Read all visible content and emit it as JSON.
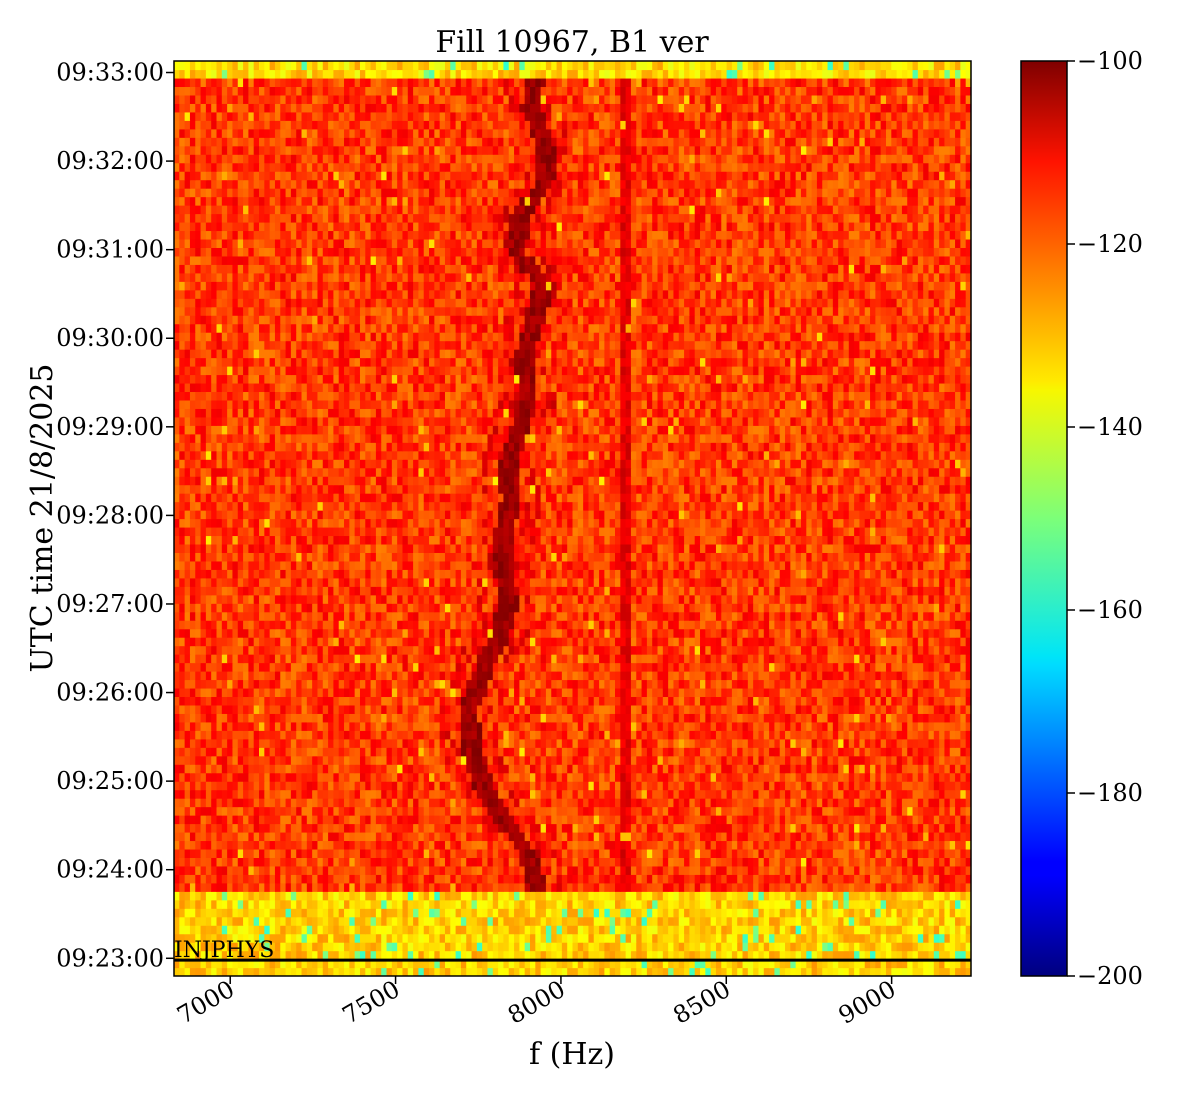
{
  "chart_data": {
    "type": "heatmap",
    "title": "Fill 10967, B1 ver",
    "xlabel": "f (Hz)",
    "ylabel": "UTC time 21/8/2025",
    "xlim": [
      6830,
      9240
    ],
    "ylim_minutes": [
      22.8,
      33.13
    ],
    "x_ticks": [
      {
        "value": 7000,
        "label": "7000"
      },
      {
        "value": 7500,
        "label": "7500"
      },
      {
        "value": 8000,
        "label": "8000"
      },
      {
        "value": 8500,
        "label": "8500"
      },
      {
        "value": 9000,
        "label": "9000"
      }
    ],
    "y_ticks": [
      {
        "value": 23,
        "label": "09:23:00"
      },
      {
        "value": 24,
        "label": "09:24:00"
      },
      {
        "value": 25,
        "label": "09:25:00"
      },
      {
        "value": 26,
        "label": "09:26:00"
      },
      {
        "value": 27,
        "label": "09:27:00"
      },
      {
        "value": 28,
        "label": "09:28:00"
      },
      {
        "value": 29,
        "label": "09:29:00"
      },
      {
        "value": 30,
        "label": "09:30:00"
      },
      {
        "value": 31,
        "label": "09:31:00"
      },
      {
        "value": 32,
        "label": "09:32:00"
      },
      {
        "value": 33,
        "label": "09:33:00"
      }
    ],
    "colorbar": {
      "colormap": "jet",
      "range": [
        -200,
        -100
      ],
      "ticks": [
        {
          "value": -100,
          "label": "−100"
        },
        {
          "value": -120,
          "label": "−120"
        },
        {
          "value": -140,
          "label": "−140"
        },
        {
          "value": -160,
          "label": "−160"
        },
        {
          "value": -180,
          "label": "−180"
        },
        {
          "value": -200,
          "label": "−200"
        }
      ]
    },
    "annotation": {
      "label": "INJPHYS",
      "time_minutes": 22.98
    },
    "segments": [
      {
        "start_minutes": 22.8,
        "end_minutes": 23.75,
        "level_db": -133
      },
      {
        "start_minutes": 23.75,
        "end_minutes": 32.92,
        "level_db": -118
      },
      {
        "start_minutes": 32.92,
        "end_minutes": 33.13,
        "level_db": -134
      }
    ],
    "tune_line": {
      "level_db": -103,
      "points": [
        {
          "time_minutes": 23.8,
          "f_hz": 7930
        },
        {
          "time_minutes": 24.2,
          "f_hz": 7900
        },
        {
          "time_minutes": 24.6,
          "f_hz": 7820
        },
        {
          "time_minutes": 25.0,
          "f_hz": 7760
        },
        {
          "time_minutes": 25.4,
          "f_hz": 7730
        },
        {
          "time_minutes": 25.8,
          "f_hz": 7720
        },
        {
          "time_minutes": 26.2,
          "f_hz": 7760
        },
        {
          "time_minutes": 26.6,
          "f_hz": 7810
        },
        {
          "time_minutes": 27.0,
          "f_hz": 7840
        },
        {
          "time_minutes": 27.4,
          "f_hz": 7830
        },
        {
          "time_minutes": 27.8,
          "f_hz": 7830
        },
        {
          "time_minutes": 28.2,
          "f_hz": 7850
        },
        {
          "time_minutes": 28.6,
          "f_hz": 7840
        },
        {
          "time_minutes": 29.0,
          "f_hz": 7880
        },
        {
          "time_minutes": 29.4,
          "f_hz": 7900
        },
        {
          "time_minutes": 29.8,
          "f_hz": 7890
        },
        {
          "time_minutes": 30.2,
          "f_hz": 7920
        },
        {
          "time_minutes": 30.6,
          "f_hz": 7950
        },
        {
          "time_minutes": 31.0,
          "f_hz": 7860
        },
        {
          "time_minutes": 31.4,
          "f_hz": 7880
        },
        {
          "time_minutes": 31.8,
          "f_hz": 7960
        },
        {
          "time_minutes": 32.2,
          "f_hz": 7950
        },
        {
          "time_minutes": 32.6,
          "f_hz": 7910
        },
        {
          "time_minutes": 32.9,
          "f_hz": 7920
        }
      ]
    },
    "static_line": {
      "f_hz": 8195,
      "level_db": -110
    }
  }
}
